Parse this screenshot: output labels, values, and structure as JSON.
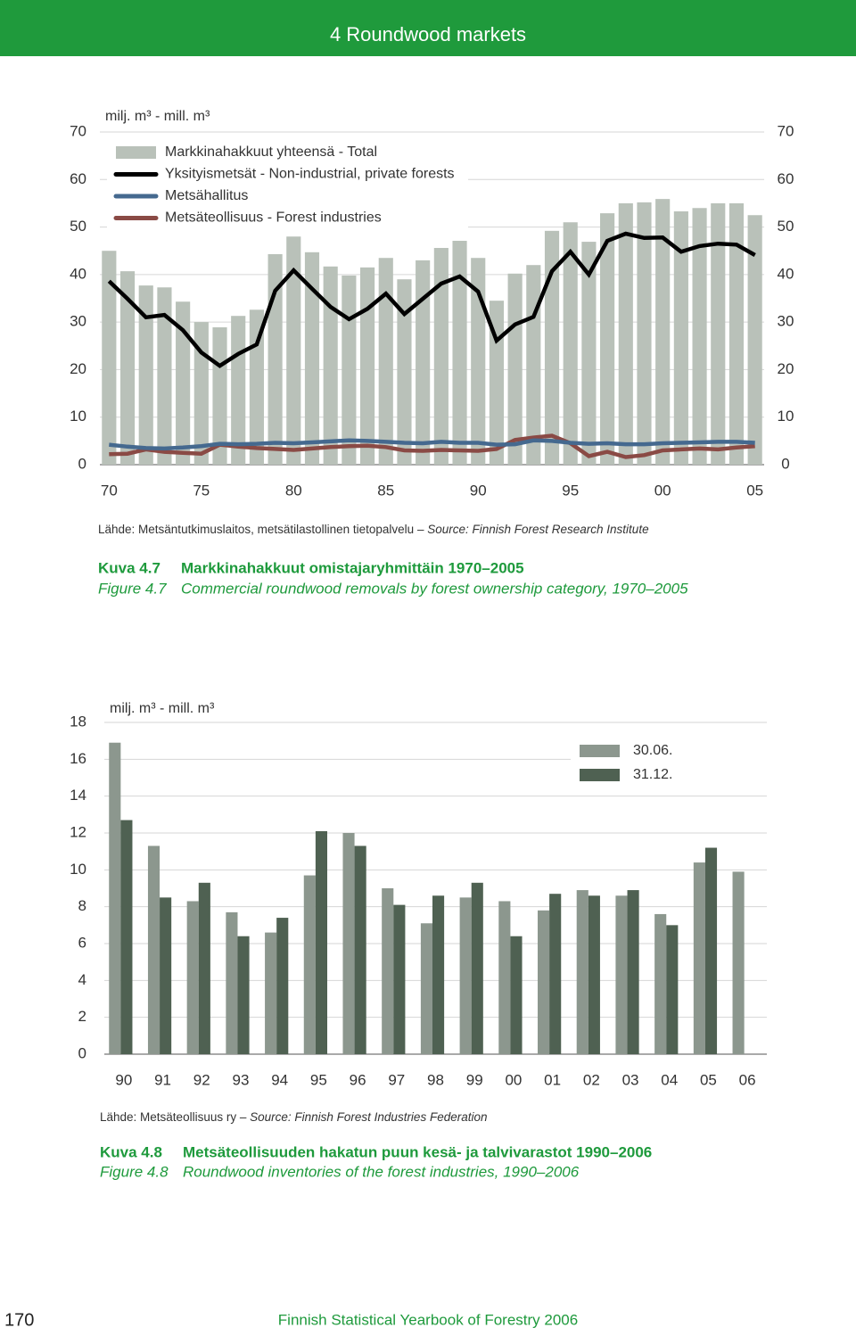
{
  "header": {
    "title": "4 Roundwood markets"
  },
  "chart_data": [
    {
      "type": "combo",
      "unit_label": "milj. m³ - mill. m³",
      "categories": [
        "70",
        null,
        null,
        null,
        null,
        "75",
        null,
        null,
        null,
        null,
        "80",
        null,
        null,
        null,
        null,
        "85",
        null,
        null,
        null,
        null,
        "90",
        null,
        null,
        null,
        null,
        "95",
        null,
        null,
        null,
        null,
        "00",
        null,
        null,
        null,
        null,
        "05"
      ],
      "series": [
        {
          "name": "Markkinahakkuut yhteensä - Total",
          "type": "bar",
          "color": "#b9c1b9",
          "values": [
            45.0,
            40.7,
            37.7,
            37.3,
            34.3,
            30.0,
            28.9,
            31.3,
            32.6,
            44.3,
            48.0,
            44.7,
            41.7,
            39.8,
            41.5,
            43.5,
            39.0,
            43.0,
            45.6,
            47.1,
            43.5,
            34.5,
            40.2,
            42.0,
            49.2,
            51.0,
            46.9,
            52.9,
            55.0,
            55.2,
            55.9,
            53.3,
            54.0,
            55.0,
            55.0,
            52.5
          ]
        },
        {
          "name": "Yksityismetsät - Non-industrial, private forests",
          "type": "line",
          "color": "#000000",
          "values": [
            38.6,
            34.9,
            31.0,
            31.5,
            28.3,
            23.6,
            20.8,
            23.3,
            25.3,
            36.6,
            40.9,
            37.0,
            33.2,
            30.6,
            32.8,
            36.0,
            31.7,
            34.9,
            38.1,
            39.6,
            36.4,
            26.1,
            29.5,
            31.1,
            40.7,
            44.8,
            40.0,
            47.1,
            48.6,
            47.7,
            47.8,
            44.8,
            46.0,
            46.5,
            46.3,
            44.1
          ]
        },
        {
          "name": "Metsähallitus",
          "type": "line",
          "color": "#45698f",
          "values": [
            4.2,
            3.8,
            3.5,
            3.4,
            3.6,
            3.9,
            4.4,
            4.3,
            4.4,
            4.6,
            4.5,
            4.7,
            4.9,
            5.1,
            5.0,
            4.8,
            4.6,
            4.5,
            4.8,
            4.6,
            4.6,
            4.2,
            4.3,
            5.1,
            5.0,
            4.6,
            4.4,
            4.5,
            4.3,
            4.3,
            4.5,
            4.6,
            4.7,
            4.8,
            4.8,
            4.6
          ]
        },
        {
          "name": "Metsäteollisuus - Forest industries",
          "type": "line",
          "color": "#8a4a45",
          "values": [
            2.2,
            2.3,
            3.2,
            2.7,
            2.5,
            2.3,
            4.2,
            3.8,
            3.5,
            3.3,
            3.1,
            3.4,
            3.7,
            3.9,
            4.0,
            3.7,
            3.0,
            2.9,
            3.1,
            3.0,
            2.9,
            3.3,
            5.2,
            5.7,
            6.1,
            4.5,
            1.8,
            2.7,
            1.6,
            2.0,
            3.0,
            3.2,
            3.4,
            3.2,
            3.6,
            3.9
          ]
        }
      ],
      "ylim": [
        0,
        70
      ],
      "yticks": [
        0,
        10,
        20,
        30,
        40,
        50,
        60,
        70
      ],
      "y2lim": [
        0,
        70
      ],
      "y2ticks": [
        0,
        10,
        20,
        30,
        40,
        50,
        60,
        70
      ],
      "grid": true,
      "legend": "upper left"
    },
    {
      "type": "bar",
      "unit_label": "milj. m³ - mill. m³",
      "categories": [
        "90",
        "91",
        "92",
        "93",
        "94",
        "95",
        "96",
        "97",
        "98",
        "99",
        "00",
        "01",
        "02",
        "03",
        "04",
        "05",
        "06"
      ],
      "series": [
        {
          "name": "30.06.",
          "color": "#8c978e",
          "values": [
            16.9,
            11.3,
            8.3,
            7.7,
            6.6,
            9.7,
            12.0,
            9.0,
            7.1,
            8.5,
            8.3,
            7.8,
            8.9,
            8.6,
            7.6,
            10.4,
            9.9
          ]
        },
        {
          "name": "31.12.",
          "color": "#4f6152",
          "values": [
            12.7,
            8.5,
            9.3,
            6.4,
            7.4,
            12.1,
            11.3,
            8.1,
            8.6,
            9.3,
            6.4,
            8.7,
            8.6,
            8.9,
            7.0,
            11.2,
            null
          ]
        }
      ],
      "ylim": [
        0,
        18
      ],
      "yticks": [
        0,
        2,
        4,
        6,
        8,
        10,
        12,
        14,
        16,
        18
      ],
      "grid": true,
      "legend": "upper right"
    }
  ],
  "figures": [
    {
      "source_fi": "Lähde: Metsäntutkimuslaitos, metsätilastollinen tietopalvelu –",
      "source_en": "Source: Finnish Forest Research Institute",
      "label_fi": "Kuva 4.7",
      "title_fi": "Markkinahakkuut omistajaryhmittäin 1970–2005",
      "label_en": "Figure 4.7",
      "title_en": "Commercial roundwood removals by forest ownership category, 1970–2005"
    },
    {
      "source_fi": "Lähde: Metsäteollisuus ry –",
      "source_en": "Source: Finnish Forest Industries Federation",
      "label_fi": "Kuva 4.8",
      "title_fi": "Metsäteollisuuden hakatun puun kesä- ja talvivarastot 1990–2006",
      "label_en": "Figure 4.8",
      "title_en": "Roundwood inventories of the forest industries, 1990–2006"
    }
  ],
  "footer": {
    "page": "170",
    "title": "Finnish Statistical Yearbook of Forestry 2006"
  }
}
